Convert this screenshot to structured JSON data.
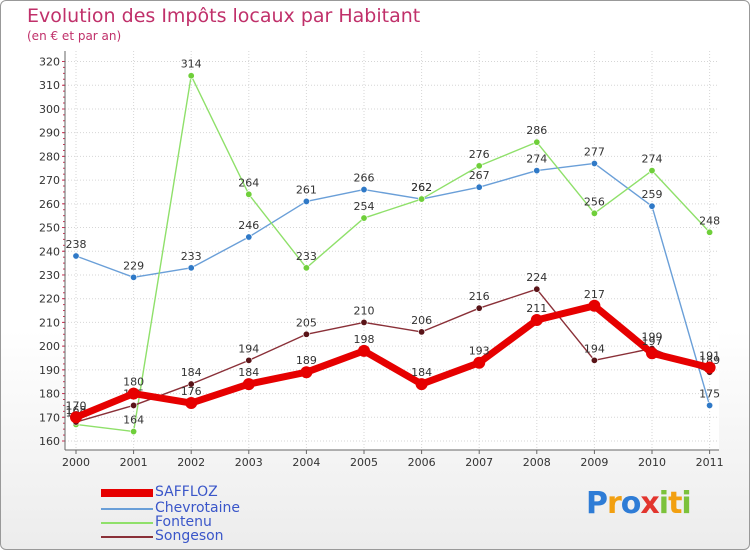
{
  "title": "Evolution des Impôts locaux par Habitant",
  "subtitle": "(en € et par an)",
  "logo": {
    "text": "Proxiti",
    "letters": [
      {
        "ch": "P",
        "color": "#2e7cd6"
      },
      {
        "ch": "r",
        "color": "#f2a011"
      },
      {
        "ch": "o",
        "color": "#2e7cd6"
      },
      {
        "ch": "x",
        "color": "#e2352e"
      },
      {
        "ch": "i",
        "color": "#7cc23b"
      },
      {
        "ch": "t",
        "color": "#f2a011"
      },
      {
        "ch": "i",
        "color": "#7cc23b"
      }
    ]
  },
  "chart_data": {
    "type": "line",
    "title": "Evolution des Impôts locaux par Habitant",
    "subtitle": "(en € et par an)",
    "xlabel": "",
    "ylabel": "",
    "x": [
      "2000",
      "2001",
      "2002",
      "2003",
      "2004",
      "2005",
      "2006",
      "2007",
      "2008",
      "2009",
      "2010",
      "2011"
    ],
    "ylim": [
      160,
      320
    ],
    "yticks": [
      160,
      170,
      180,
      190,
      200,
      210,
      220,
      230,
      240,
      250,
      260,
      270,
      280,
      290,
      300,
      310,
      320
    ],
    "grid": true,
    "legend_position": "bottom-left",
    "series": [
      {
        "name": "SAFFLOZ",
        "color": "#e60000",
        "marker_color": "#e60000",
        "emphasis": true,
        "values": [
          170,
          180,
          176,
          184,
          189,
          198,
          184,
          193,
          211,
          217,
          197,
          191
        ]
      },
      {
        "name": "Chevrotaine",
        "color": "#6a9fd8",
        "marker_color": "#2f79c7",
        "emphasis": false,
        "values": [
          238,
          229,
          233,
          246,
          261,
          266,
          262,
          267,
          274,
          277,
          259,
          175
        ]
      },
      {
        "name": "Fontenu",
        "color": "#8fe06a",
        "marker_color": "#6fcf3a",
        "emphasis": false,
        "values": [
          167,
          164,
          314,
          264,
          233,
          254,
          262,
          276,
          286,
          256,
          274,
          248
        ]
      },
      {
        "name": "Songeson",
        "color": "#8a3038",
        "marker_color": "#5a1418",
        "emphasis": false,
        "values": [
          168,
          175,
          184,
          194,
          205,
          210,
          206,
          216,
          224,
          194,
          199,
          189
        ]
      }
    ]
  }
}
